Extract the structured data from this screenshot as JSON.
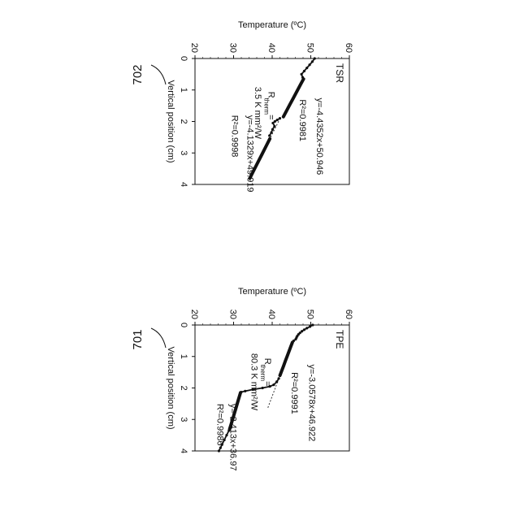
{
  "figure_labels": [
    "701",
    "702"
  ],
  "chart_data": [
    {
      "type": "scatter",
      "label": "TPE",
      "figure_label": "701",
      "xlabel": "Vertical position (cm)",
      "ylabel": "Temperature (ºC)",
      "xlim": [
        0,
        4
      ],
      "ylim": [
        20,
        60
      ],
      "xticks": [
        0,
        1,
        2,
        3,
        4
      ],
      "yticks": [
        20,
        30,
        40,
        50,
        60
      ],
      "grid": false,
      "series": [
        {
          "x": [
            0.0,
            0.05,
            0.1,
            0.15,
            0.2,
            0.25,
            0.3,
            0.35,
            0.4,
            0.45,
            0.5
          ],
          "y": [
            50.5,
            49.8,
            49.0,
            48.3,
            47.7,
            47.2,
            46.8,
            46.5,
            46.3,
            46.1,
            45.6
          ]
        },
        {
          "x": [
            0.55,
            0.7,
            0.85,
            1.0,
            1.15,
            1.3,
            1.45,
            1.6
          ],
          "y": [
            45.24,
            44.78,
            44.32,
            43.86,
            43.4,
            42.95,
            42.49,
            42.03
          ]
        },
        {
          "x": [
            1.7,
            1.8,
            1.9,
            1.95,
            2.0,
            2.05,
            2.1,
            2.13
          ],
          "y": [
            41.7,
            41.2,
            40.4,
            39.4,
            37.5,
            35.0,
            33.0,
            32.0
          ]
        },
        {
          "x": [
            2.15,
            2.4,
            2.65,
            2.9,
            3.15,
            3.3
          ],
          "y": [
            31.78,
            31.18,
            30.58,
            29.97,
            29.37,
            29.0
          ]
        },
        {
          "x": [
            3.35,
            3.5,
            3.65,
            3.8,
            3.9,
            4.0
          ],
          "y": [
            28.8,
            28.2,
            27.6,
            27.0,
            26.6,
            26.2
          ]
        }
      ],
      "fits": [
        {
          "slope": -3.0578,
          "intercept": 46.922,
          "x_range": [
            0.55,
            2.65
          ]
        },
        {
          "slope": -2.413,
          "intercept": 36.97,
          "x_range": [
            2.15,
            3.3
          ]
        }
      ],
      "annotations": [
        {
          "text": "y=-3.0578x+46.922",
          "x": 1.25,
          "y": 49.6
        },
        {
          "text": "R²=0.9991",
          "x": 1.5,
          "y": 45.1
        },
        {
          "text": "R",
          "sub": "therm",
          "tail": "=",
          "x": 1.05,
          "y": 38.1
        },
        {
          "text": "80.3 K mm²/W",
          "x": 0.9,
          "y": 34.6
        },
        {
          "text": "y=-2.413x+36.97",
          "x": 2.5,
          "y": 29.2
        },
        {
          "text": "R²=0.9986",
          "x": 2.5,
          "y": 25.8
        }
      ]
    },
    {
      "type": "scatter",
      "label": "TSR",
      "figure_label": "702",
      "xlabel": "Vertical position (cm)",
      "ylabel": "Temperature (ºC)",
      "xlim": [
        0,
        4
      ],
      "ylim": [
        20,
        60
      ],
      "xticks": [
        0,
        1,
        2,
        3,
        4
      ],
      "yticks": [
        20,
        30,
        40,
        50,
        60
      ],
      "grid": false,
      "series": [
        {
          "x": [
            0.0,
            0.1,
            0.2,
            0.3,
            0.4,
            0.5,
            0.6
          ],
          "y": [
            51.0,
            50.4,
            49.7,
            49.0,
            48.3,
            47.6,
            47.9
          ]
        },
        {
          "x": [
            0.65,
            0.85,
            1.05,
            1.25,
            1.45,
            1.65,
            1.85
          ],
          "y": [
            48.12,
            47.25,
            46.38,
            45.51,
            44.64,
            43.77,
            42.9
          ]
        },
        {
          "x": [
            1.9,
            1.95,
            2.0,
            2.05,
            2.15,
            2.25,
            2.35,
            2.45
          ],
          "y": [
            42.0,
            41.3,
            40.7,
            40.2,
            40.6,
            40.1,
            39.8,
            39.3
          ]
        },
        {
          "x": [
            2.55,
            2.8,
            3.05,
            3.3,
            3.55,
            3.8
          ],
          "y": [
            39.38,
            38.35,
            37.33,
            36.28,
            35.25,
            34.22
          ]
        }
      ],
      "fits": [
        {
          "slope": -4.4352,
          "intercept": 50.946,
          "x_range": [
            0.65,
            1.85
          ]
        },
        {
          "slope": -4.1329,
          "intercept": 49.919,
          "x_range": [
            1.9,
            3.8
          ]
        }
      ],
      "annotations": [
        {
          "text": "y=-4.4352x+50.946",
          "x": 1.25,
          "y": 51.6
        },
        {
          "text": "R²=0.9981",
          "x": 1.3,
          "y": 47.2
        },
        {
          "text": "R",
          "sub": "therm",
          "tail": "=",
          "x": 1.05,
          "y": 39.0
        },
        {
          "text": "3.5 K mm²/W",
          "x": 0.9,
          "y": 35.6
        },
        {
          "text": "y=-4.1329x+49.919",
          "x": 1.8,
          "y": 33.6
        },
        {
          "text": "R²=0.9998",
          "x": 1.8,
          "y": 29.6
        }
      ]
    }
  ]
}
